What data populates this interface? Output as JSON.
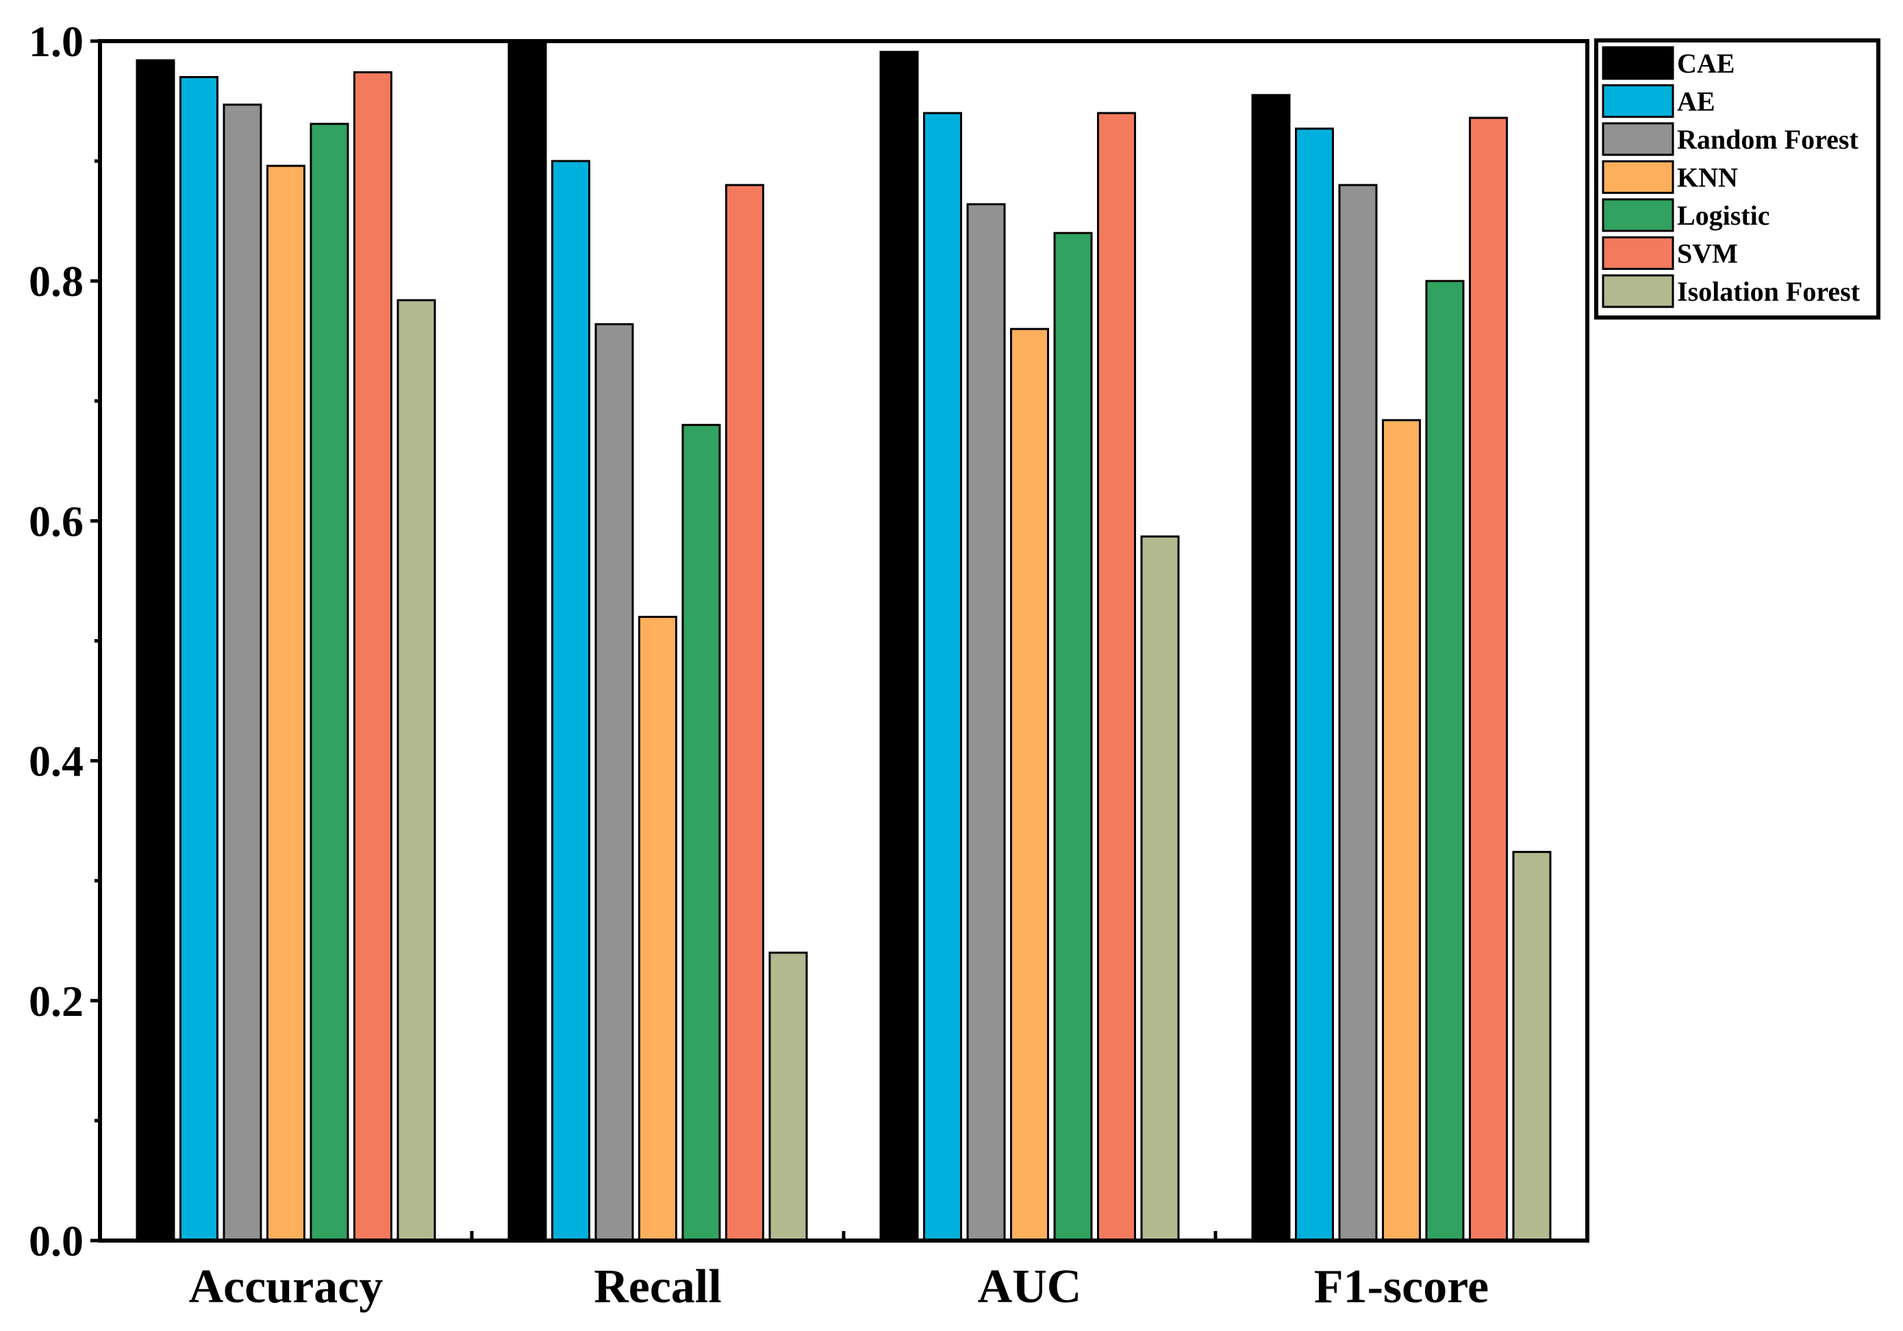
{
  "chart_data": {
    "type": "bar",
    "title": "",
    "xlabel": "",
    "ylabel": "",
    "ylim": [
      0,
      1.0
    ],
    "yticks": [
      "0.0",
      "0.2",
      "0.4",
      "0.6",
      "0.8",
      "1.0"
    ],
    "ytick_values": [
      0.0,
      0.2,
      0.4,
      0.6,
      0.8,
      1.0
    ],
    "categories": [
      "Accuracy",
      "Recall",
      "AUC",
      "F1-score"
    ],
    "grid": false,
    "legend_position": "top-right, outside plot",
    "series": [
      {
        "name": "CAE",
        "color": "#000000",
        "values": [
          0.984,
          1.0,
          0.991,
          0.955
        ]
      },
      {
        "name": "AE",
        "color": "#00B0DC",
        "values": [
          0.97,
          0.9,
          0.94,
          0.927
        ]
      },
      {
        "name": "Random Forest",
        "color": "#929292",
        "values": [
          0.947,
          0.764,
          0.864,
          0.88
        ]
      },
      {
        "name": "KNN",
        "color": "#FDAF5C",
        "values": [
          0.896,
          0.52,
          0.76,
          0.684
        ]
      },
      {
        "name": "Logistic",
        "color": "#31A260",
        "values": [
          0.931,
          0.68,
          0.84,
          0.8
        ]
      },
      {
        "name": "SVM",
        "color": "#F37A5D",
        "values": [
          0.974,
          0.88,
          0.94,
          0.936
        ]
      },
      {
        "name": "Isolation Forest",
        "color": "#B3B98F",
        "values": [
          0.784,
          0.24,
          0.587,
          0.324
        ]
      }
    ]
  }
}
